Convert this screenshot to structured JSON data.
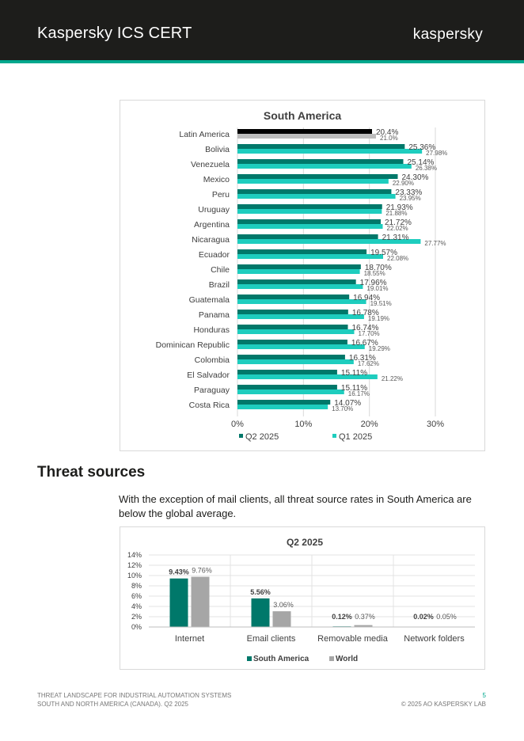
{
  "header": {
    "title": "Kaspersky ICS CERT",
    "logo_text": "kaspersky"
  },
  "colors": {
    "q2": "#00786a",
    "q1": "#1ecdbe",
    "latam_q2": "#000000",
    "latam_q1": "#bdbdbd",
    "south_america": "#00786a",
    "world": "#a6a6a6",
    "accent": "#00a88e"
  },
  "chart_data": [
    {
      "type": "bar",
      "orientation": "horizontal",
      "title": "South America",
      "categories": [
        "Latin America",
        "Bolivia",
        "Venezuela",
        "Mexico",
        "Peru",
        "Uruguay",
        "Argentina",
        "Nicaragua",
        "Ecuador",
        "Chile",
        "Brazil",
        "Guatemala",
        "Panama",
        "Honduras",
        "Dominican Republic",
        "Colombia",
        "El Salvador",
        "Paraguay",
        "Costa Rica"
      ],
      "series": [
        {
          "name": "Q2 2025",
          "values": [
            20.4,
            25.36,
            25.14,
            24.3,
            23.33,
            21.93,
            21.72,
            21.31,
            19.57,
            18.7,
            17.96,
            16.94,
            16.78,
            16.74,
            16.67,
            16.31,
            15.11,
            15.11,
            14.07
          ],
          "labels": [
            "20.4%",
            "25.36%",
            "25.14%",
            "24.30%",
            "23.33%",
            "21.93%",
            "21.72%",
            "21.31%",
            "19.57%",
            "18.70%",
            "17.96%",
            "16.94%",
            "16.78%",
            "16.74%",
            "16.67%",
            "16.31%",
            "15.11%",
            "15.11%",
            "14.07%"
          ]
        },
        {
          "name": "Q1 2025",
          "values": [
            21.0,
            27.98,
            26.38,
            22.9,
            23.95,
            21.88,
            22.02,
            27.77,
            22.08,
            18.55,
            19.01,
            19.51,
            19.19,
            17.7,
            19.29,
            17.62,
            21.22,
            16.17,
            13.7
          ],
          "labels": [
            "21.0%",
            "27.98%",
            "26.38%",
            "22.90%",
            "23.95%",
            "21.88%",
            "22.02%",
            "27.77%",
            "22.08%",
            "18.55%",
            "19.01%",
            "19.51%",
            "19.19%",
            "17.70%",
            "19.29%",
            "17.62%",
            "21.22%",
            "16.17%",
            "13.70%"
          ]
        }
      ],
      "xlim": [
        0,
        30
      ],
      "xticks": [
        "0%",
        "10%",
        "20%",
        "30%"
      ],
      "grid": true,
      "legend": "bottom"
    },
    {
      "type": "bar",
      "title": "Q2 2025",
      "categories": [
        "Internet",
        "Email clients",
        "Removable media",
        "Network folders"
      ],
      "series": [
        {
          "name": "South America",
          "values": [
            9.43,
            5.56,
            0.12,
            0.02
          ],
          "labels": [
            "9.43%",
            "5.56%",
            "0.12%",
            "0.02%"
          ]
        },
        {
          "name": "World",
          "values": [
            9.76,
            3.06,
            0.37,
            0.05
          ],
          "labels": [
            "9.76%",
            "3.06%",
            "0.37%",
            "0.05%"
          ]
        }
      ],
      "ylim": [
        0,
        14
      ],
      "yticks": [
        "0%",
        "2%",
        "4%",
        "6%",
        "8%",
        "10%",
        "12%",
        "14%"
      ],
      "grid": true,
      "legend": "bottom"
    }
  ],
  "section": {
    "title": "Threat sources",
    "intro": "With the exception of mail clients, all threat source rates in South America are below the global average."
  },
  "footer": {
    "line1": "THREAT LANDSCAPE FOR INDUSTRIAL AUTOMATION SYSTEMS",
    "line2": "SOUTH AND NORTH AMERICA (CANADA). Q2 2025",
    "page": "5",
    "copyright": "© 2025 AO KASPERSKY LAB"
  }
}
